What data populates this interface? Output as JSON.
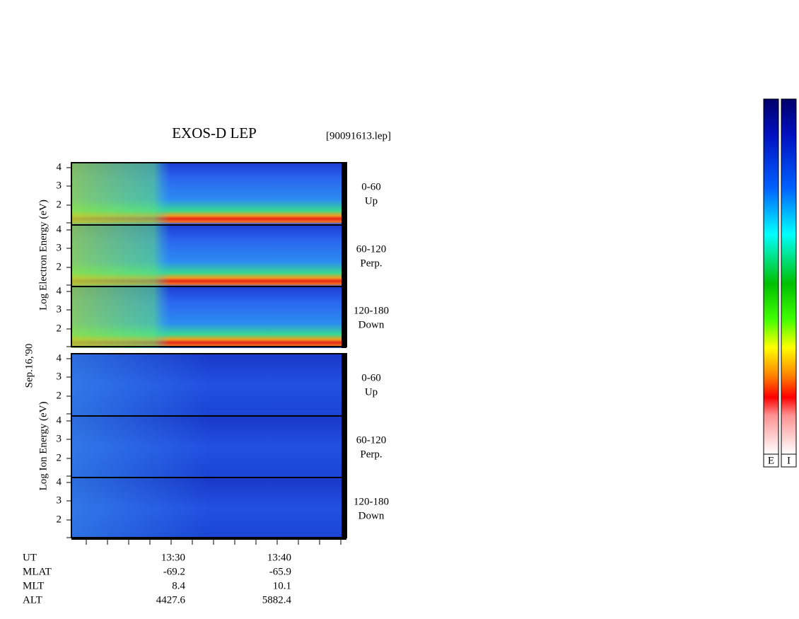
{
  "header": {
    "title": "EXOS-D LEP",
    "file": "[90091613.lep]"
  },
  "date": "Sep.16,'90",
  "groups": [
    {
      "kind": "electron",
      "axis_label": "Log Electron Energy (eV)",
      "panels": [
        {
          "angle": "0-60",
          "direction": "Up",
          "yticks": [
            "4",
            "3",
            "2"
          ]
        },
        {
          "angle": "60-120",
          "direction": "Perp.",
          "yticks": [
            "4",
            "3",
            "2"
          ]
        },
        {
          "angle": "120-180",
          "direction": "Down",
          "yticks": [
            "4",
            "3",
            "2"
          ]
        }
      ]
    },
    {
      "kind": "ion",
      "axis_label": "Log Ion Energy (eV)",
      "panels": [
        {
          "angle": "0-60",
          "direction": "Up",
          "yticks": [
            "4",
            "3",
            "2"
          ]
        },
        {
          "angle": "60-120",
          "direction": "Perp.",
          "yticks": [
            "4",
            "3",
            "2"
          ]
        },
        {
          "angle": "120-180",
          "direction": "Down",
          "yticks": [
            "4",
            "3",
            "2"
          ]
        }
      ]
    }
  ],
  "time_axis": {
    "rows": [
      {
        "name": "UT",
        "values": [
          "13:30",
          "13:40"
        ]
      },
      {
        "name": "MLAT",
        "values": [
          "-69.2",
          "-65.9"
        ]
      },
      {
        "name": "MLT",
        "values": [
          "8.4",
          "10.1"
        ]
      },
      {
        "name": "ALT",
        "values": [
          "4427.6",
          "5882.4"
        ]
      }
    ]
  },
  "colorbars": [
    {
      "label": "E"
    },
    {
      "label": "I"
    }
  ]
}
